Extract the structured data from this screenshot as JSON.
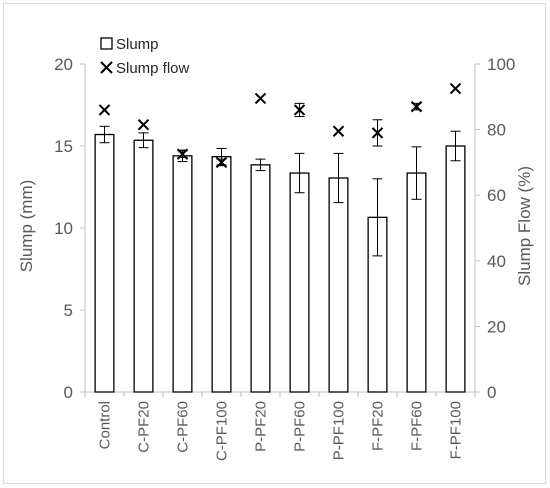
{
  "chart_data": {
    "type": "bar",
    "categories": [
      "Control",
      "C-PF20",
      "C-PF60",
      "C-PF100",
      "P-PF20",
      "P-PF60",
      "P-PF100",
      "F-PF20",
      "F-PF60",
      "F-PF100"
    ],
    "series": [
      {
        "name": "Slump",
        "type": "bar",
        "axis": "left",
        "values": [
          15.7,
          15.35,
          14.4,
          14.35,
          13.85,
          13.35,
          13.05,
          10.65,
          13.35,
          15.0
        ],
        "errors": [
          0.5,
          0.45,
          0.35,
          0.5,
          0.35,
          1.2,
          1.5,
          2.35,
          1.6,
          0.9
        ]
      },
      {
        "name": "Slump flow",
        "type": "scatter",
        "marker": "x",
        "axis": "right",
        "values": [
          86,
          81.5,
          72.5,
          70,
          89.5,
          86,
          79.5,
          79,
          87,
          92.5
        ],
        "errors": [
          0,
          0,
          1,
          1,
          0,
          2,
          0,
          4,
          1,
          0
        ]
      }
    ],
    "xlabel": "",
    "ylabel": "Slump (mm)",
    "y2label": "Slump Flow (%)",
    "ylim": [
      0,
      20
    ],
    "y2lim": [
      0,
      100
    ],
    "yticks": [
      "0",
      "5",
      "10",
      "15",
      "20"
    ],
    "y2ticks": [
      "0",
      "20",
      "40",
      "60",
      "80",
      "100"
    ],
    "grid": false,
    "legend_position": "top-left"
  }
}
